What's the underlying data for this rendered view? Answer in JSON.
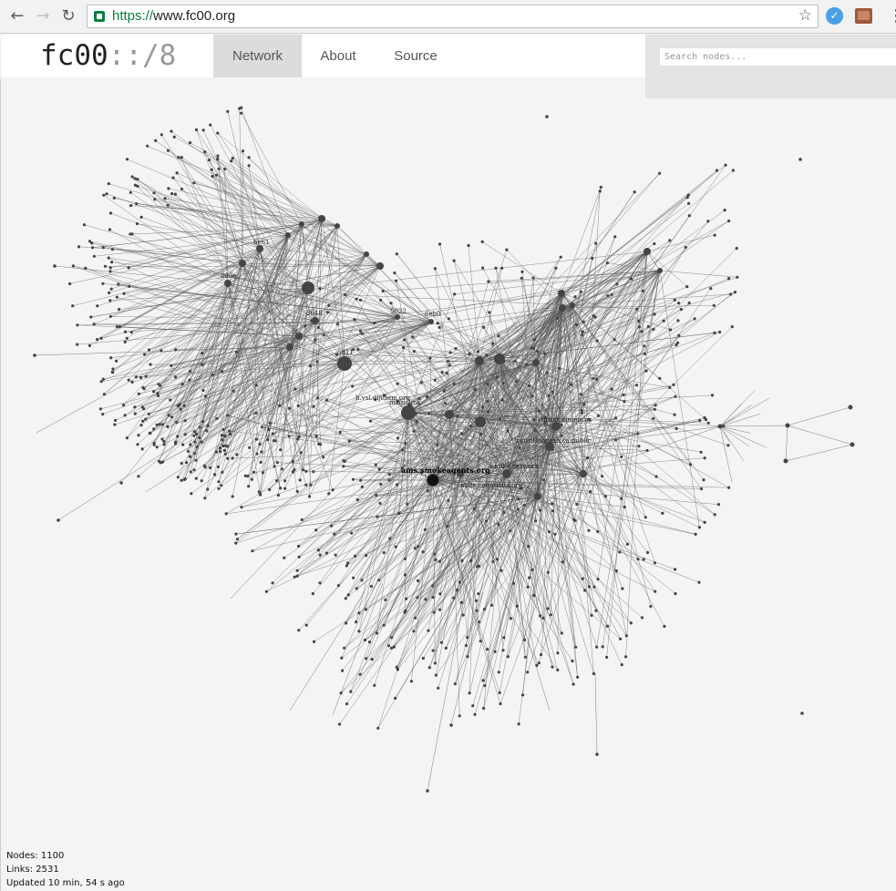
{
  "browser": {
    "back_icon": "←",
    "forward_icon": "→",
    "reload_icon": "↻",
    "url_scheme": "https://",
    "url_host": "www.fc00.org",
    "star_icon": "☆",
    "menu_icon": "⋮"
  },
  "header": {
    "logo_main": "fc00",
    "logo_dim": "::/8",
    "tabs": [
      {
        "label": "Network",
        "active": true
      },
      {
        "label": "About",
        "active": false
      },
      {
        "label": "Source",
        "active": false
      }
    ],
    "search_placeholder": "Search nodes..."
  },
  "graph": {
    "edge_color": "#555555",
    "node_color": "#444444",
    "labels": [
      {
        "text": "5d11"
      },
      {
        "text": "5022"
      },
      {
        "text": "6eb0"
      },
      {
        "text": "ams.smokeagents.org"
      },
      {
        "text": "h.vsl.dijitlem.org"
      },
      {
        "text": "magiclink"
      },
      {
        "text": "transitionnetb.ca.public"
      },
      {
        "text": "chttoryhinieis.us"
      },
      {
        "text": "a.mike.network"
      },
      {
        "text": "node.conquoits.org"
      },
      {
        "text": "6e61"
      },
      {
        "text": "889e"
      },
      {
        "text": "3648"
      }
    ]
  },
  "stats": {
    "nodes": "Nodes: 1100",
    "links": "Links: 2531",
    "updated": "Updated 10 min, 54 s ago"
  }
}
